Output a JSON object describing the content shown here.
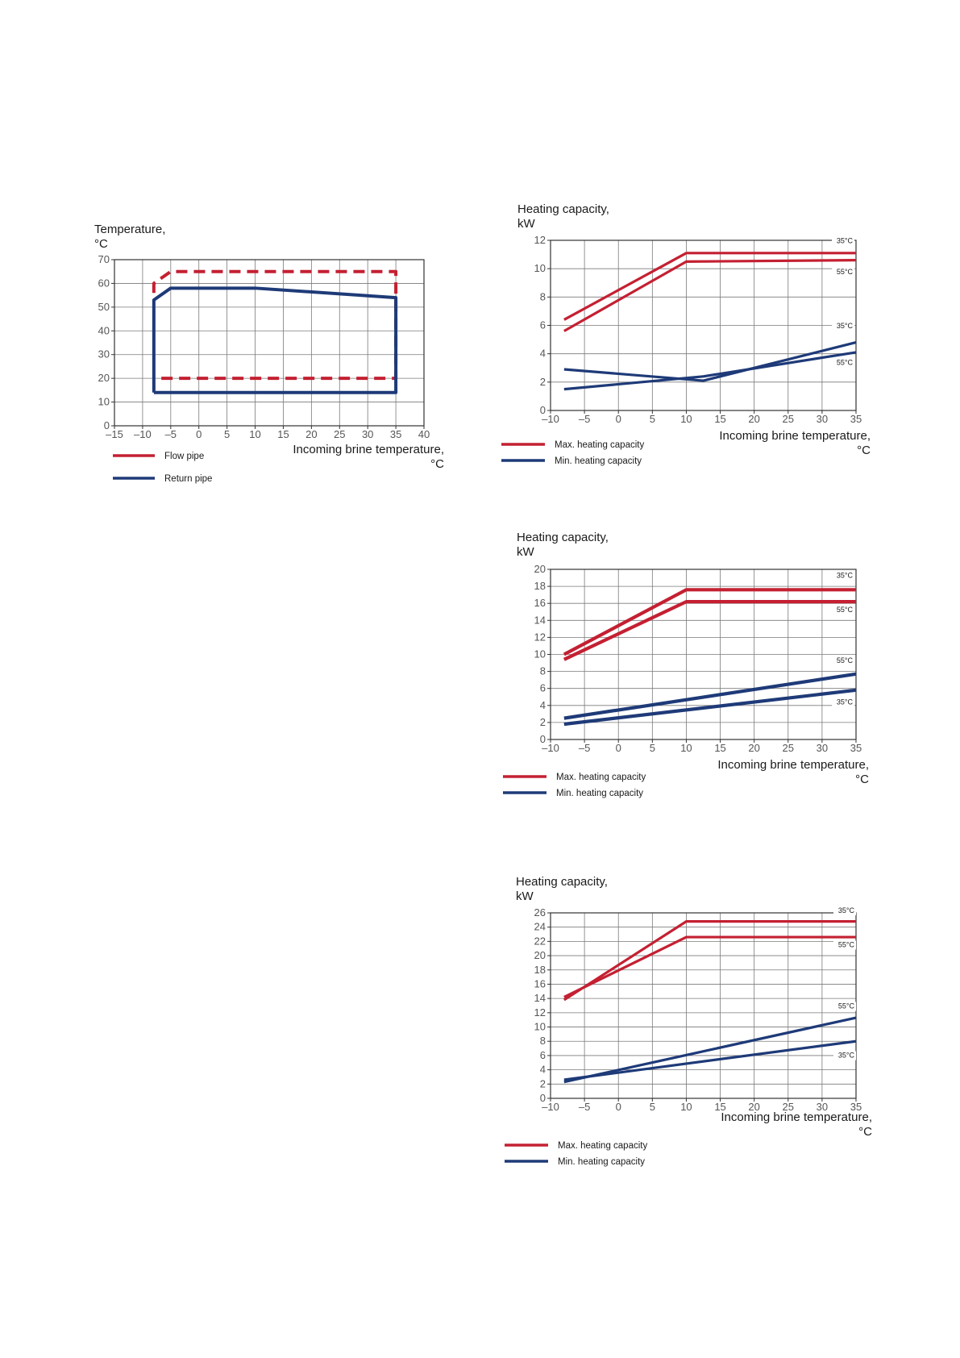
{
  "chart_data": [
    {
      "id": "operating-range",
      "type": "line",
      "ylabel_1": "Temperature,",
      "ylabel_2": "°C",
      "xlabel_1": "Incoming brine temperature,",
      "xlabel_2": "°C",
      "xlim": [
        -15,
        40
      ],
      "ylim": [
        0,
        70
      ],
      "xticks": [
        -15,
        -10,
        -5,
        0,
        5,
        10,
        15,
        20,
        25,
        30,
        35,
        40
      ],
      "xtick_labels": [
        "–15",
        "–10",
        "–5",
        "0",
        "5",
        "10",
        "15",
        "20",
        "25",
        "30",
        "35",
        "40"
      ],
      "yticks": [
        0,
        10,
        20,
        30,
        40,
        50,
        60,
        70
      ],
      "ytick_labels": [
        "0",
        "10",
        "20",
        "30",
        "40",
        "50",
        "60",
        "70"
      ],
      "series": [
        {
          "name": "Flow pipe",
          "color": "#c42032",
          "dash": true,
          "x": [
            -8,
            -8,
            -5,
            35,
            35,
            -8
          ],
          "y": [
            56,
            60,
            65,
            65,
            20,
            20
          ]
        },
        {
          "name": "Return pipe",
          "color": "#1e3a78",
          "dash": false,
          "x": [
            -8,
            -8,
            -5,
            10,
            35,
            35,
            -8
          ],
          "y": [
            14,
            53,
            58,
            58,
            54,
            14,
            14
          ]
        }
      ],
      "legend": [
        {
          "label": "Flow pipe",
          "color": "#c42032"
        },
        {
          "label": "Return pipe",
          "color": "#1e3a78"
        }
      ]
    },
    {
      "id": "capacity-chart-1",
      "type": "line",
      "ylabel_1": "Heating capacity,",
      "ylabel_2": "kW",
      "xlabel_1": "Incoming brine temperature,",
      "xlabel_2": "°C",
      "xlim": [
        -10,
        35
      ],
      "ylim": [
        0,
        12
      ],
      "xticks": [
        -10,
        -5,
        0,
        5,
        10,
        15,
        20,
        25,
        30,
        35
      ],
      "xtick_labels": [
        "–10",
        "–5",
        "0",
        "5",
        "10",
        "15",
        "20",
        "25",
        "30",
        "35"
      ],
      "yticks": [
        0,
        2,
        4,
        6,
        8,
        10,
        12
      ],
      "ytick_labels": [
        "0",
        "2",
        "4",
        "6",
        "8",
        "10",
        "12"
      ],
      "series": [
        {
          "name": "Max. heating capacity 35°C",
          "color": "#c42032",
          "x": [
            -8,
            10,
            35
          ],
          "y": [
            6.4,
            11.1,
            11.1
          ]
        },
        {
          "name": "Max. heating capacity 55°C",
          "color": "#c42032",
          "x": [
            -8,
            10,
            35
          ],
          "y": [
            5.6,
            10.5,
            10.6
          ]
        },
        {
          "name": "Min. heating capacity 35°C",
          "color": "#1e3a78",
          "x": [
            -8,
            12.5,
            35
          ],
          "y": [
            2.9,
            2.1,
            4.8
          ]
        },
        {
          "name": "Min. heating capacity 55°C",
          "color": "#1e3a78",
          "x": [
            -8,
            12.5,
            35
          ],
          "y": [
            1.5,
            2.4,
            4.1
          ]
        }
      ],
      "annotations": [
        {
          "text": "35°C",
          "y": 11.8
        },
        {
          "text": "55°C",
          "y": 9.6
        },
        {
          "text": "35°C",
          "y": 5.8
        },
        {
          "text": "55°C",
          "y": 3.2
        }
      ],
      "legend": [
        {
          "label": "Max. heating capacity",
          "color": "#c42032"
        },
        {
          "label": "Min. heating capacity",
          "color": "#1e3a78"
        }
      ]
    },
    {
      "id": "capacity-chart-2",
      "type": "line",
      "ylabel_1": "Heating capacity,",
      "ylabel_2": "kW",
      "xlabel_1": "Incoming brine temperature,",
      "xlabel_2": "°C",
      "xlim": [
        -10,
        35
      ],
      "ylim": [
        0,
        20
      ],
      "xticks": [
        -10,
        -5,
        0,
        5,
        10,
        15,
        20,
        25,
        30,
        35
      ],
      "xtick_labels": [
        "–10",
        "–5",
        "0",
        "5",
        "10",
        "15",
        "20",
        "25",
        "30",
        "35"
      ],
      "yticks": [
        0,
        2,
        4,
        6,
        8,
        10,
        12,
        14,
        16,
        18,
        20
      ],
      "ytick_labels": [
        "0",
        "2",
        "4",
        "6",
        "8",
        "10",
        "12",
        "14",
        "16",
        "18",
        "20"
      ],
      "series": [
        {
          "name": "Max. heating capacity 35°C",
          "color": "#c42032",
          "x": [
            -8,
            10,
            35
          ],
          "y": [
            10.0,
            17.6,
            17.6
          ]
        },
        {
          "name": "Max. heating capacity 55°C",
          "color": "#c42032",
          "x": [
            -8,
            10,
            35
          ],
          "y": [
            9.4,
            16.2,
            16.2
          ]
        },
        {
          "name": "Min. heating capacity 55°C",
          "color": "#1e3a78",
          "x": [
            -8,
            35
          ],
          "y": [
            2.5,
            7.7
          ]
        },
        {
          "name": "Min. heating capacity 35°C",
          "color": "#1e3a78",
          "x": [
            -8,
            35
          ],
          "y": [
            1.8,
            5.8
          ]
        }
      ],
      "annotations": [
        {
          "text": "35°C",
          "y": 19.0
        },
        {
          "text": "55°C",
          "y": 15.0
        },
        {
          "text": "55°C",
          "y": 9.0
        },
        {
          "text": "35°C",
          "y": 4.1
        }
      ],
      "legend": [
        {
          "label": "Max. heating capacity",
          "color": "#c42032"
        },
        {
          "label": "Min. heating capacity",
          "color": "#1e3a78"
        }
      ]
    },
    {
      "id": "capacity-chart-3",
      "type": "line",
      "ylabel_1": "Heating capacity,",
      "ylabel_2": "kW",
      "xlabel_1": "Incoming brine temperature,",
      "xlabel_2": "°C",
      "xlim": [
        -10,
        35
      ],
      "ylim": [
        0,
        26
      ],
      "xticks": [
        -10,
        -5,
        0,
        5,
        10,
        15,
        20,
        25,
        30,
        35
      ],
      "xtick_labels": [
        "–10",
        "–5",
        "0",
        "5",
        "10",
        "15",
        "20",
        "25",
        "30",
        "35"
      ],
      "yticks": [
        0,
        2,
        4,
        6,
        8,
        10,
        12,
        14,
        16,
        18,
        20,
        22,
        24,
        26
      ],
      "ytick_labels": [
        "0",
        "2",
        "4",
        "6",
        "8",
        "10",
        "12",
        "14",
        "16",
        "18",
        "20",
        "22",
        "24",
        "26"
      ],
      "series": [
        {
          "name": "Max. heating capacity 35°C",
          "color": "#c42032",
          "x": [
            -8,
            10,
            35
          ],
          "y": [
            13.8,
            24.8,
            24.8
          ]
        },
        {
          "name": "Max. heating capacity 55°C",
          "color": "#c42032",
          "x": [
            -8,
            10,
            35
          ],
          "y": [
            14.2,
            22.6,
            22.6
          ]
        },
        {
          "name": "Min. heating capacity 55°C",
          "color": "#1e3a78",
          "x": [
            -8,
            35
          ],
          "y": [
            2.3,
            11.3
          ]
        },
        {
          "name": "Min. heating capacity 35°C",
          "color": "#1e3a78",
          "x": [
            -8,
            35
          ],
          "y": [
            2.6,
            8.0
          ]
        }
      ],
      "annotations": [
        {
          "text": "35°C",
          "y": 26.0
        },
        {
          "text": "55°C",
          "y": 21.2
        },
        {
          "text": "55°C",
          "y": 12.6
        },
        {
          "text": "35°C",
          "y": 5.7
        }
      ],
      "legend": [
        {
          "label": "Max. heating capacity",
          "color": "#c42032"
        },
        {
          "label": "Min. heating capacity",
          "color": "#1e3a78"
        }
      ]
    }
  ]
}
